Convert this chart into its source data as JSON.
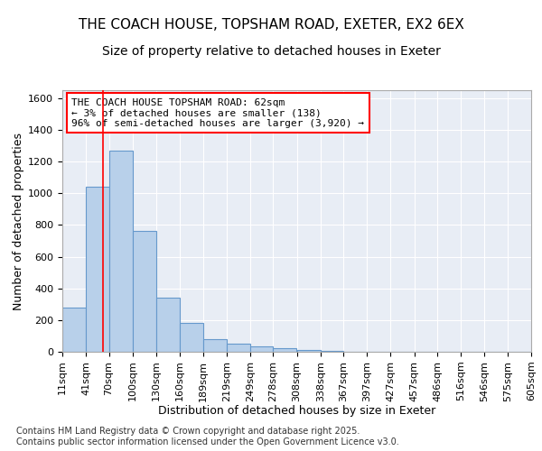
{
  "title1": "THE COACH HOUSE, TOPSHAM ROAD, EXETER, EX2 6EX",
  "title2": "Size of property relative to detached houses in Exeter",
  "xlabel": "Distribution of detached houses by size in Exeter",
  "ylabel": "Number of detached properties",
  "bar_color": "#b8d0ea",
  "bar_edge_color": "#6699cc",
  "background_color": "#e8edf5",
  "grid_color": "#ffffff",
  "annotation_text": "THE COACH HOUSE TOPSHAM ROAD: 62sqm\n← 3% of detached houses are smaller (138)\n96% of semi-detached houses are larger (3,920) →",
  "vline_x": 62,
  "categories": [
    "11sqm",
    "41sqm",
    "70sqm",
    "100sqm",
    "130sqm",
    "160sqm",
    "189sqm",
    "219sqm",
    "249sqm",
    "278sqm",
    "308sqm",
    "338sqm",
    "367sqm",
    "397sqm",
    "427sqm",
    "457sqm",
    "486sqm",
    "516sqm",
    "546sqm",
    "575sqm",
    "605sqm"
  ],
  "bin_edges": [
    11,
    41,
    70,
    100,
    130,
    160,
    189,
    219,
    249,
    278,
    308,
    338,
    367,
    397,
    427,
    457,
    486,
    516,
    546,
    575,
    605
  ],
  "bar_heights": [
    280,
    1040,
    1270,
    760,
    340,
    180,
    80,
    50,
    35,
    20,
    10,
    5,
    0,
    0,
    0,
    0,
    0,
    0,
    0,
    0
  ],
  "ylim": [
    0,
    1650
  ],
  "yticks": [
    0,
    200,
    400,
    600,
    800,
    1000,
    1200,
    1400,
    1600
  ],
  "footnote": "Contains HM Land Registry data © Crown copyright and database right 2025.\nContains public sector information licensed under the Open Government Licence v3.0.",
  "title_fontsize": 11,
  "subtitle_fontsize": 10,
  "axis_fontsize": 9,
  "tick_fontsize": 8,
  "annot_fontsize": 8,
  "footnote_fontsize": 7
}
